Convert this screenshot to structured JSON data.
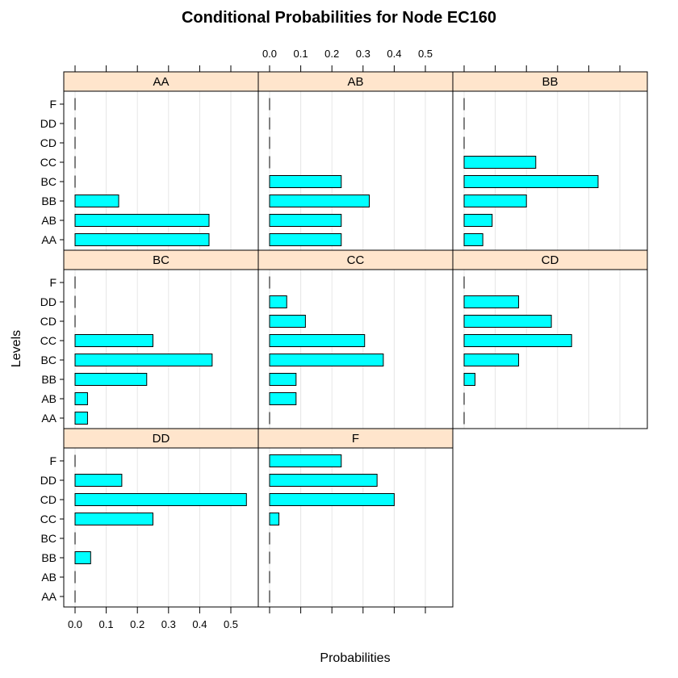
{
  "chart_data": {
    "type": "bar",
    "orientation": "horizontal",
    "layout": "trellis",
    "title": "Conditional Probabilities for Node EC160",
    "xlabel": "Probabilities",
    "ylabel": "Levels",
    "levels": [
      "AA",
      "AB",
      "BB",
      "BC",
      "CC",
      "CD",
      "DD",
      "F"
    ],
    "xlim": [
      0,
      0.6
    ],
    "xticks": [
      0.0,
      0.1,
      0.2,
      0.3,
      0.4,
      0.5
    ],
    "xtick_labels": [
      "0.0",
      "0.1",
      "0.2",
      "0.3",
      "0.4",
      "0.5"
    ],
    "grid": true,
    "bar_color": "#00ffff",
    "strip_color": "#ffe5cc",
    "panels": [
      {
        "name": "AA",
        "values": [
          0.43,
          0.43,
          0.14,
          0,
          0,
          0,
          0,
          0
        ]
      },
      {
        "name": "AB",
        "values": [
          0.23,
          0.23,
          0.32,
          0.23,
          0,
          0,
          0,
          0
        ]
      },
      {
        "name": "BB",
        "values": [
          0.06,
          0.09,
          0.2,
          0.43,
          0.23,
          0,
          0,
          0
        ]
      },
      {
        "name": "BC",
        "values": [
          0.04,
          0.04,
          0.23,
          0.44,
          0.25,
          0,
          0,
          0
        ]
      },
      {
        "name": "CC",
        "values": [
          0,
          0.085,
          0.085,
          0.365,
          0.305,
          0.115,
          0.055,
          0
        ]
      },
      {
        "name": "CD",
        "values": [
          0,
          0,
          0.035,
          0.175,
          0.345,
          0.28,
          0.175,
          0
        ]
      },
      {
        "name": "DD",
        "values": [
          0,
          0,
          0.05,
          0,
          0.25,
          0.55,
          0.15,
          0
        ]
      },
      {
        "name": "F",
        "values": [
          0,
          0,
          0,
          0,
          0.03,
          0.4,
          0.345,
          0.23
        ]
      }
    ]
  }
}
